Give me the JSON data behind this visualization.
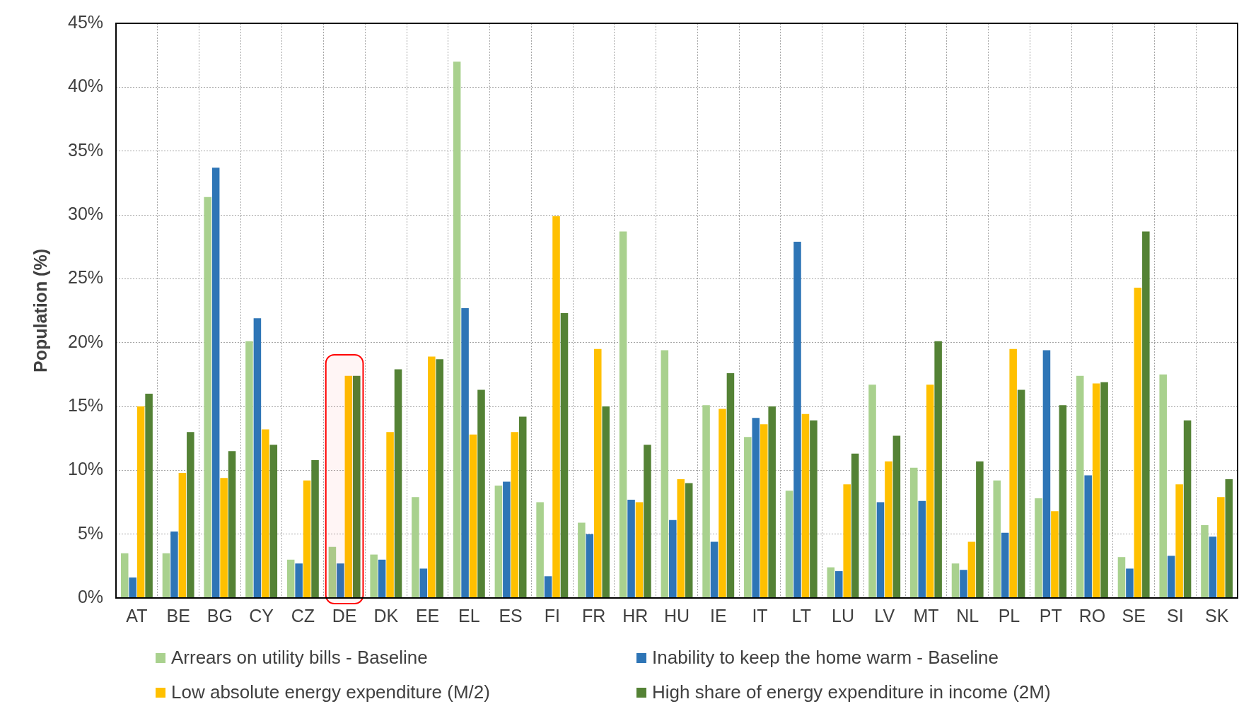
{
  "chart_data": {
    "type": "bar",
    "ylabel": "Population (%)",
    "categories": [
      "AT",
      "BE",
      "BG",
      "CY",
      "CZ",
      "DE",
      "DK",
      "EE",
      "EL",
      "ES",
      "FI",
      "FR",
      "HR",
      "HU",
      "IE",
      "IT",
      "LT",
      "LU",
      "LV",
      "MT",
      "NL",
      "PL",
      "PT",
      "RO",
      "SE",
      "SI",
      "SK"
    ],
    "series": [
      {
        "name": "Arrears on utility bills - Baseline",
        "color": "#a9d18e",
        "values": [
          3.5,
          3.5,
          31.4,
          20.1,
          3.0,
          4.0,
          3.4,
          7.9,
          42.0,
          8.8,
          7.5,
          5.9,
          28.7,
          19.4,
          15.1,
          12.6,
          8.4,
          2.4,
          16.7,
          10.2,
          2.7,
          9.2,
          7.8,
          17.4,
          3.2,
          17.5,
          5.7
        ]
      },
      {
        "name": "Inability to keep the home warm - Baseline",
        "color": "#2e75b6",
        "values": [
          1.6,
          5.2,
          33.7,
          21.9,
          2.7,
          2.7,
          3.0,
          2.3,
          22.7,
          9.1,
          1.7,
          5.0,
          7.7,
          6.1,
          4.4,
          14.1,
          27.9,
          2.1,
          7.5,
          7.6,
          2.2,
          5.1,
          19.4,
          9.6,
          2.3,
          3.3,
          4.8
        ]
      },
      {
        "name": "Low absolute energy expenditure (M/2)",
        "color": "#ffc000",
        "values": [
          15.0,
          9.8,
          9.4,
          13.2,
          9.2,
          17.4,
          13.0,
          18.9,
          12.8,
          13.0,
          29.9,
          19.5,
          7.5,
          9.3,
          14.8,
          13.6,
          14.4,
          8.9,
          10.7,
          16.7,
          4.4,
          19.5,
          6.8,
          16.8,
          24.3,
          8.9,
          7.9
        ]
      },
      {
        "name": "High share of energy expenditure in income (2M)",
        "color": "#548235",
        "values": [
          16.0,
          13.0,
          11.5,
          12.0,
          10.8,
          17.4,
          17.9,
          18.7,
          16.3,
          14.2,
          22.3,
          15.0,
          12.0,
          9.0,
          17.6,
          15.0,
          13.9,
          11.3,
          12.7,
          20.1,
          10.7,
          16.3,
          15.1,
          16.9,
          28.7,
          13.9,
          9.3
        ]
      }
    ],
    "ylim": [
      0,
      45
    ],
    "yticks": [
      {
        "value": 0,
        "label": "0%"
      },
      {
        "value": 5,
        "label": "5%"
      },
      {
        "value": 10,
        "label": "10%"
      },
      {
        "value": 15,
        "label": "15%"
      },
      {
        "value": 20,
        "label": "20%"
      },
      {
        "value": 25,
        "label": "25%"
      },
      {
        "value": 30,
        "label": "30%"
      },
      {
        "value": 35,
        "label": "35%"
      },
      {
        "value": 40,
        "label": "40%"
      },
      {
        "value": 45,
        "label": "45%"
      }
    ],
    "bands": [
      {
        "axis": "x",
        "from": "DE",
        "to": "DE",
        "color": "#ff0000"
      }
    ],
    "grid": true,
    "legend": "bottom"
  }
}
